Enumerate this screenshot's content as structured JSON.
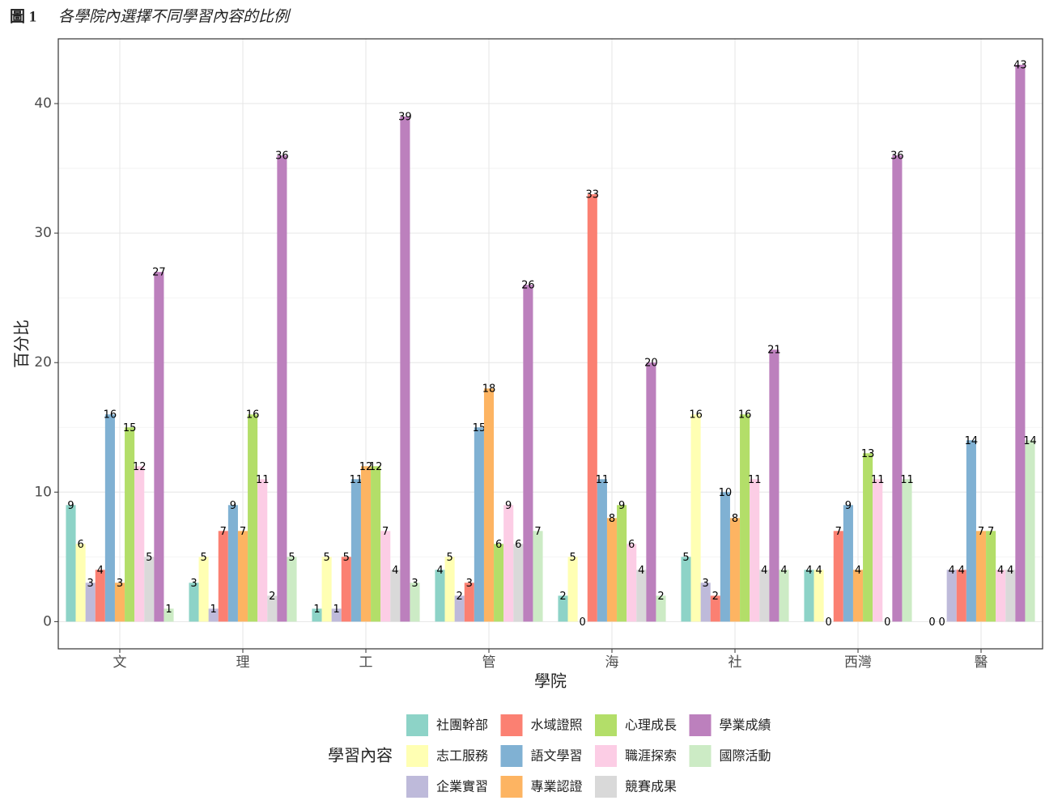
{
  "chart_data": {
    "type": "bar",
    "figure_label": "圖 1",
    "title": "各學院內選擇不同學習內容的比例",
    "x_label": "學院",
    "y_label": "百分比",
    "legend_title": "學習內容",
    "legend_position": "bottom",
    "grid": true,
    "categories": [
      "文",
      "理",
      "工",
      "管",
      "海",
      "社",
      "西灣",
      "醫"
    ],
    "ylim": [
      -2.1,
      45
    ],
    "yticks": [
      0,
      10,
      20,
      30,
      40
    ],
    "series": [
      {
        "name": "社團幹部",
        "color": "#8dd3c7",
        "values": [
          9,
          3,
          1,
          4,
          2,
          5,
          4,
          0
        ]
      },
      {
        "name": "志工服務",
        "color": "#ffffb3",
        "values": [
          6,
          5,
          5,
          5,
          5,
          16,
          4,
          0
        ]
      },
      {
        "name": "企業實習",
        "color": "#bebada",
        "values": [
          3,
          1,
          1,
          2,
          0,
          3,
          0,
          4
        ]
      },
      {
        "name": "水域證照",
        "color": "#fb8072",
        "values": [
          4,
          7,
          5,
          3,
          33,
          2,
          7,
          4
        ]
      },
      {
        "name": "語文學習",
        "color": "#80b1d3",
        "values": [
          16,
          9,
          11,
          15,
          11,
          10,
          9,
          14
        ]
      },
      {
        "name": "專業認證",
        "color": "#fdb462",
        "values": [
          3,
          7,
          12,
          18,
          8,
          8,
          4,
          7
        ]
      },
      {
        "name": "心理成長",
        "color": "#b3de69",
        "values": [
          15,
          16,
          12,
          6,
          9,
          16,
          13,
          7
        ]
      },
      {
        "name": "職涯探索",
        "color": "#fccde5",
        "values": [
          12,
          11,
          7,
          9,
          6,
          11,
          11,
          4
        ]
      },
      {
        "name": "競賽成果",
        "color": "#d9d9d9",
        "values": [
          5,
          2,
          4,
          6,
          4,
          4,
          0,
          4
        ]
      },
      {
        "name": "學業成績",
        "color": "#bc80bd",
        "values": [
          27,
          36,
          39,
          26,
          20,
          21,
          36,
          43
        ]
      },
      {
        "name": "國際活動",
        "color": "#ccebc5",
        "values": [
          1,
          5,
          3,
          7,
          2,
          4,
          11,
          14
        ]
      }
    ]
  }
}
